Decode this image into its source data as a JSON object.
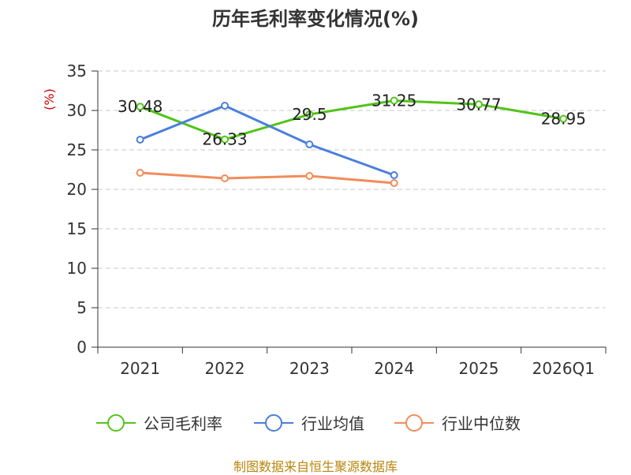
{
  "page": {
    "title": "历年毛利率变化情况(%)",
    "source": "制图数据来自恒生聚源数据库"
  },
  "chart_data": {
    "type": "line",
    "title": "历年毛利率变化情况(%)",
    "xlabel": "",
    "ylabel": "(%)",
    "categories": [
      "2021",
      "2022",
      "2023",
      "2024",
      "2025",
      "2026Q1"
    ],
    "ylim": [
      0,
      35
    ],
    "yticks": [
      0,
      5,
      10,
      15,
      20,
      25,
      30,
      35
    ],
    "grid": true,
    "legend_position": "bottom",
    "series": [
      {
        "name": "公司毛利率",
        "color": "#52c41a",
        "values": [
          30.48,
          26.33,
          29.5,
          31.25,
          30.77,
          28.95
        ],
        "labels": [
          "30.48",
          "26.33",
          "29.5",
          "31.25",
          "30.77",
          "28.95"
        ],
        "show_labels": true
      },
      {
        "name": "行业均值",
        "color": "#4a7fdc",
        "values": [
          26.3,
          30.6,
          25.7,
          21.8,
          null,
          null
        ],
        "show_labels": false
      },
      {
        "name": "行业中位数",
        "color": "#f28c5a",
        "values": [
          22.1,
          21.4,
          21.7,
          20.8,
          null,
          null
        ],
        "show_labels": false
      }
    ]
  }
}
